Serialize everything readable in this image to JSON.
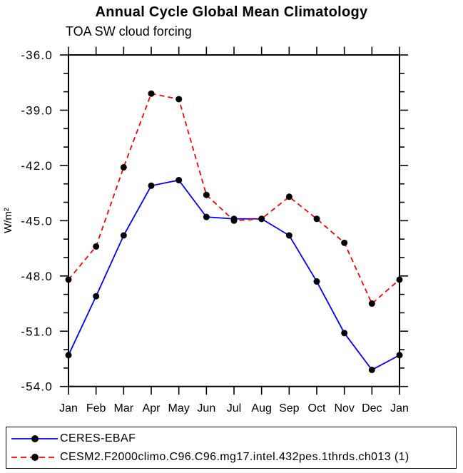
{
  "chart_data": {
    "type": "line",
    "title": "Annual Cycle Global Mean Climatology",
    "subtitle": "TOA SW cloud forcing",
    "ylabel": "W/m²",
    "categories": [
      "Jan",
      "Feb",
      "Mar",
      "Apr",
      "May",
      "Jun",
      "Jul",
      "Aug",
      "Sep",
      "Oct",
      "Nov",
      "Dec",
      "Jan"
    ],
    "ylim": [
      -54.0,
      -36.0
    ],
    "y_major_ticks": [
      -36.0,
      -39.0,
      -42.0,
      -45.0,
      -48.0,
      -51.0,
      -54.0
    ],
    "y_minor_tick_step": 1.0,
    "grid": false,
    "axis_color": "#000000",
    "marker": "filled-circle",
    "marker_color": "#000000",
    "legend_position": "bottom-box",
    "series": [
      {
        "name": "CERES-EBAF",
        "line_color": "#0000ff",
        "line_style": "solid",
        "values": [
          -52.3,
          -49.1,
          -45.8,
          -43.1,
          -42.8,
          -44.8,
          -44.9,
          -44.9,
          -45.8,
          -48.3,
          -51.1,
          -53.1,
          -52.3
        ]
      },
      {
        "name": "CESM2.F2000climo.C96.C96.mg17.intel.432pes.1thrds.ch013 (1)",
        "line_color": "#ff0000",
        "line_style": "dashed",
        "values": [
          -48.2,
          -46.4,
          -42.1,
          -38.1,
          -38.4,
          -43.6,
          -45.0,
          -44.9,
          -43.7,
          -44.9,
          -46.2,
          -49.5,
          -48.2
        ]
      }
    ]
  }
}
